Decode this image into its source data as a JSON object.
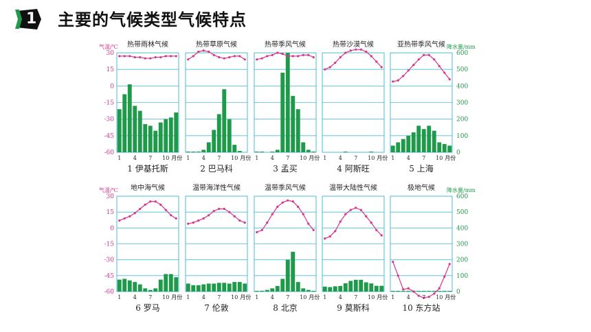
{
  "header": {
    "badge_number": "1",
    "title": "主要的气候类型气候特点"
  },
  "colors": {
    "bar": "#1f9a4a",
    "temp_line": "#d9338c",
    "grid": "#4bbcd6",
    "axis_text": "#d9338c",
    "precip_text": "#1f9a4a"
  },
  "rows": [
    {
      "temp_axis": {
        "label": "气温/℃",
        "ticks": [
          "30",
          "15",
          "0",
          "-15",
          "-30",
          "-45",
          "-60"
        ]
      },
      "precip_axis": {
        "label": "降水量/mm",
        "ticks": [
          "600",
          "500",
          "400",
          "300",
          "200",
          "100",
          "0"
        ]
      }
    },
    {
      "temp_axis": {
        "label": "气温/℃",
        "ticks": [
          "30",
          "15",
          "0",
          "-15",
          "-30",
          "-45",
          "-60"
        ]
      },
      "precip_axis": {
        "label": "降水量/mm",
        "ticks": [
          "600",
          "500",
          "400",
          "300",
          "200",
          "100",
          "0"
        ]
      }
    }
  ],
  "month_ticks": [
    "1",
    "4",
    "7",
    "10",
    "月份"
  ],
  "chart_data": [
    {
      "type": "bar+line",
      "title": "热带雨林气候",
      "caption": "1 伊基托斯",
      "temperature": [
        27,
        27,
        27,
        26,
        26,
        25,
        25,
        26,
        26,
        27,
        27,
        27
      ],
      "precipitation": [
        260,
        350,
        410,
        280,
        250,
        170,
        160,
        130,
        180,
        200,
        210,
        240
      ]
    },
    {
      "type": "bar+line",
      "title": "热带草原气候",
      "caption": "2 巴马科",
      "temperature": [
        24,
        27,
        31,
        32,
        31,
        28,
        26,
        25,
        26,
        27,
        27,
        24
      ],
      "precipitation": [
        2,
        2,
        3,
        15,
        60,
        135,
        230,
        380,
        200,
        45,
        8,
        0
      ]
    },
    {
      "type": "bar+line",
      "title": "热带季风气候",
      "caption": "3 孟买",
      "temperature": [
        24,
        25,
        27,
        28,
        30,
        29,
        27,
        27,
        27,
        28,
        28,
        26
      ],
      "precipitation": [
        2,
        1,
        0,
        2,
        15,
        480,
        610,
        340,
        260,
        60,
        15,
        3
      ]
    },
    {
      "type": "bar+line",
      "title": "热带沙漠气候",
      "caption": "4 阿斯旺",
      "temperature": [
        15,
        17,
        21,
        26,
        30,
        32,
        33,
        33,
        31,
        27,
        22,
        17
      ],
      "precipitation": [
        0,
        0,
        0,
        0,
        1,
        0,
        0,
        0,
        0,
        1,
        0,
        0
      ]
    },
    {
      "type": "bar+line",
      "title": "亚热带季风气候",
      "caption": "5 上海",
      "temperature": [
        4,
        5,
        9,
        14,
        19,
        24,
        28,
        28,
        24,
        18,
        12,
        6
      ],
      "precipitation": [
        40,
        60,
        80,
        100,
        120,
        160,
        140,
        160,
        130,
        60,
        50,
        40
      ]
    },
    {
      "type": "bar+line",
      "title": "地中海气候",
      "caption": "6 罗马",
      "temperature": [
        7,
        9,
        11,
        14,
        18,
        22,
        25,
        25,
        22,
        17,
        12,
        9
      ],
      "precipitation": [
        75,
        80,
        70,
        60,
        45,
        20,
        10,
        20,
        75,
        110,
        110,
        90
      ]
    },
    {
      "type": "bar+line",
      "title": "温带海洋性气候",
      "caption": "7 伦敦",
      "temperature": [
        4,
        5,
        7,
        9,
        12,
        16,
        18,
        18,
        15,
        11,
        7,
        5
      ],
      "precipitation": [
        50,
        40,
        40,
        45,
        50,
        50,
        55,
        55,
        50,
        60,
        60,
        50
      ]
    },
    {
      "type": "bar+line",
      "title": "温带季风气候",
      "caption": "8 北京",
      "temperature": [
        -4,
        -2,
        5,
        13,
        20,
        24,
        26,
        25,
        20,
        13,
        4,
        -2
      ],
      "precipitation": [
        3,
        5,
        10,
        20,
        35,
        80,
        200,
        250,
        60,
        20,
        10,
        3
      ]
    },
    {
      "type": "bar+line",
      "title": "温带大陆性气候",
      "caption": "9 莫斯科",
      "temperature": [
        -10,
        -8,
        -3,
        6,
        13,
        17,
        19,
        17,
        11,
        5,
        -2,
        -7
      ],
      "precipitation": [
        31,
        28,
        33,
        35,
        52,
        67,
        74,
        74,
        58,
        51,
        36,
        36
      ]
    },
    {
      "type": "bar+line",
      "title": "极地气候",
      "caption": "10 东方站",
      "temperature": [
        -32,
        -45,
        -58,
        -57,
        -60,
        -64,
        -66,
        -65,
        -62,
        -57,
        -46,
        -34
      ],
      "precipitation": [
        1,
        1,
        1,
        1,
        1,
        2,
        2,
        2,
        1,
        1,
        1,
        1
      ]
    }
  ]
}
